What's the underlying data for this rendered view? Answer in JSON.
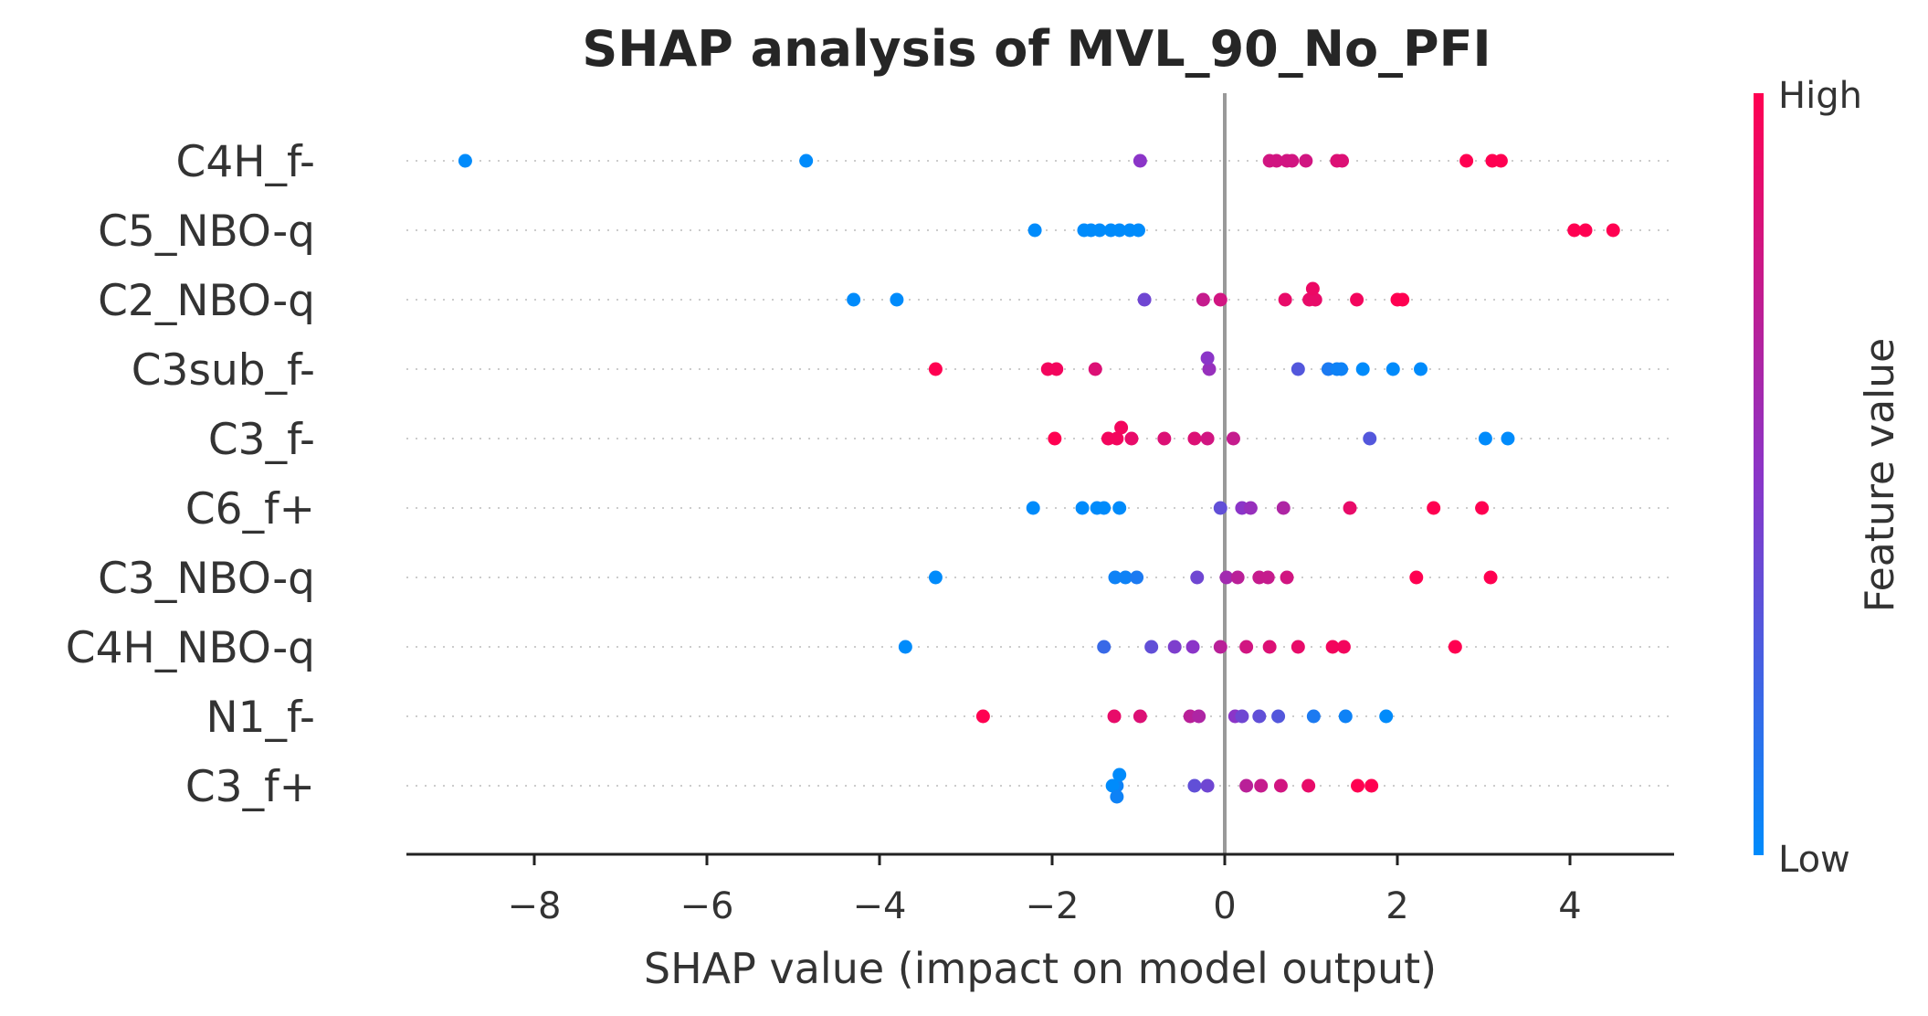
{
  "chart_data": {
    "type": "scatter",
    "title": "SHAP analysis of MVL_90_No_PFI",
    "xlabel": "SHAP value (impact on model output)",
    "xlim": [
      -9.4,
      5.2
    ],
    "xticks": [
      -8,
      -6,
      -4,
      -2,
      0,
      2,
      4
    ],
    "xtick_labels": [
      "−8",
      "−6",
      "−4",
      "−2",
      "0",
      "2",
      "4"
    ],
    "colorbar": {
      "label": "Feature value",
      "high": "High",
      "low": "Low",
      "high_color": "#ff0051",
      "low_color": "#008bfb"
    },
    "features": [
      {
        "name": "C4H_f-",
        "points": [
          [
            -8.8,
            0
          ],
          [
            -4.85,
            0
          ],
          [
            -0.98,
            0.5
          ],
          [
            0.52,
            0.8
          ],
          [
            0.6,
            0.8
          ],
          [
            0.72,
            0.8
          ],
          [
            0.78,
            0.8
          ],
          [
            0.94,
            0.8
          ],
          [
            1.3,
            0.85
          ],
          [
            1.36,
            0.85
          ],
          [
            2.8,
            1
          ],
          [
            3.1,
            1
          ],
          [
            3.2,
            1
          ]
        ]
      },
      {
        "name": "C5_NBO-q",
        "points": [
          [
            -2.2,
            0
          ],
          [
            -1.63,
            0
          ],
          [
            -1.55,
            0
          ],
          [
            -1.45,
            0
          ],
          [
            -1.32,
            0
          ],
          [
            -1.22,
            0
          ],
          [
            -1.1,
            0
          ],
          [
            -1.0,
            0
          ],
          [
            4.05,
            1
          ],
          [
            4.18,
            1
          ],
          [
            4.5,
            1
          ]
        ]
      },
      {
        "name": "C2_NBO-q",
        "points": [
          [
            -4.3,
            0
          ],
          [
            -3.8,
            0
          ],
          [
            -0.93,
            0.4
          ],
          [
            -0.25,
            0.75
          ],
          [
            -0.05,
            0.8
          ],
          [
            0.7,
            0.9
          ],
          [
            0.98,
            0.9
          ],
          [
            1.05,
            0.9
          ],
          [
            1.02,
            0.92
          ],
          [
            1.53,
            0.95
          ],
          [
            2.0,
            1
          ],
          [
            2.06,
            1
          ]
        ]
      },
      {
        "name": "C3sub_f-",
        "points": [
          [
            -3.35,
            1
          ],
          [
            -2.05,
            0.95
          ],
          [
            -1.95,
            0.95
          ],
          [
            -1.5,
            0.85
          ],
          [
            -0.18,
            0.55
          ],
          [
            -0.2,
            0.5
          ],
          [
            0.85,
            0.3
          ],
          [
            1.2,
            0.1
          ],
          [
            1.3,
            0.05
          ],
          [
            1.35,
            0.05
          ],
          [
            1.6,
            0
          ],
          [
            1.95,
            0
          ],
          [
            2.27,
            0
          ]
        ]
      },
      {
        "name": "C3_f-",
        "points": [
          [
            -1.97,
            1
          ],
          [
            -1.35,
            0.95
          ],
          [
            -1.25,
            0.95
          ],
          [
            -1.2,
            0.95
          ],
          [
            -1.08,
            0.9
          ],
          [
            -0.7,
            0.85
          ],
          [
            -0.35,
            0.85
          ],
          [
            -0.2,
            0.8
          ],
          [
            0.1,
            0.75
          ],
          [
            1.68,
            0.3
          ],
          [
            3.02,
            0
          ],
          [
            3.28,
            0
          ]
        ]
      },
      {
        "name": "C6_f+",
        "points": [
          [
            -2.22,
            0
          ],
          [
            -1.65,
            0
          ],
          [
            -1.48,
            0
          ],
          [
            -1.4,
            0
          ],
          [
            -1.22,
            0
          ],
          [
            -0.05,
            0.35
          ],
          [
            0.2,
            0.5
          ],
          [
            0.3,
            0.55
          ],
          [
            0.68,
            0.65
          ],
          [
            1.45,
            0.9
          ],
          [
            2.42,
            1
          ],
          [
            2.98,
            1
          ]
        ]
      },
      {
        "name": "C3_NBO-q",
        "points": [
          [
            -3.35,
            0
          ],
          [
            -1.27,
            0.05
          ],
          [
            -1.15,
            0.05
          ],
          [
            -1.02,
            0.1
          ],
          [
            -0.32,
            0.4
          ],
          [
            0.02,
            0.6
          ],
          [
            0.15,
            0.7
          ],
          [
            0.4,
            0.75
          ],
          [
            0.5,
            0.75
          ],
          [
            0.72,
            0.8
          ],
          [
            2.22,
            1
          ],
          [
            3.08,
            1
          ]
        ]
      },
      {
        "name": "C4H_NBO-q",
        "points": [
          [
            -3.7,
            0
          ],
          [
            -1.4,
            0.2
          ],
          [
            -0.85,
            0.35
          ],
          [
            -0.58,
            0.45
          ],
          [
            -0.37,
            0.5
          ],
          [
            -0.05,
            0.7
          ],
          [
            0.25,
            0.8
          ],
          [
            0.52,
            0.85
          ],
          [
            0.85,
            0.9
          ],
          [
            1.25,
            0.95
          ],
          [
            1.38,
            0.95
          ],
          [
            2.67,
            1
          ]
        ]
      },
      {
        "name": "N1_f-",
        "points": [
          [
            -2.8,
            1
          ],
          [
            -1.28,
            0.9
          ],
          [
            -0.98,
            0.85
          ],
          [
            -0.4,
            0.7
          ],
          [
            -0.3,
            0.65
          ],
          [
            0.12,
            0.5
          ],
          [
            0.2,
            0.4
          ],
          [
            0.4,
            0.35
          ],
          [
            0.62,
            0.3
          ],
          [
            1.03,
            0.1
          ],
          [
            1.4,
            0.05
          ],
          [
            1.87,
            0
          ]
        ]
      },
      {
        "name": "C3_f+",
        "points": [
          [
            -1.25,
            0.05
          ],
          [
            -1.3,
            0
          ],
          [
            -1.22,
            0
          ],
          [
            -0.35,
            0.35
          ],
          [
            -0.2,
            0.4
          ],
          [
            0.25,
            0.7
          ],
          [
            0.42,
            0.75
          ],
          [
            0.65,
            0.8
          ],
          [
            0.97,
            0.9
          ],
          [
            1.54,
            1
          ],
          [
            1.7,
            1
          ],
          [
            -1.25,
            0.05
          ]
        ]
      }
    ]
  }
}
